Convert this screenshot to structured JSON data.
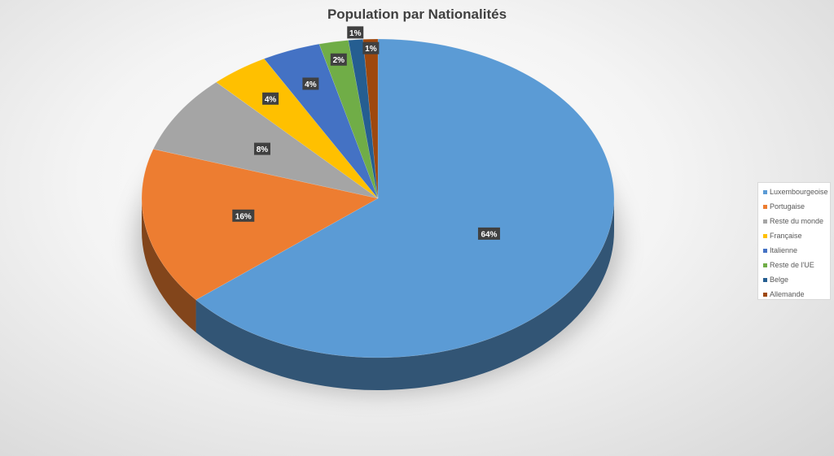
{
  "chart_data": {
    "type": "pie",
    "title": "Population par Nationalités",
    "categories": [
      "Luxembourgeoise",
      "Portugaise",
      "Reste du monde",
      "Française",
      "Italienne",
      "Reste de l'UE",
      "Belge",
      "Allemande"
    ],
    "values": [
      64,
      16,
      8,
      4,
      4,
      2,
      1,
      1
    ],
    "data_labels": [
      "64%",
      "16%",
      "8%",
      "4%",
      "4%",
      "2%",
      "1%",
      "1%"
    ],
    "colors": [
      "#5b9bd5",
      "#ed7d31",
      "#a5a5a5",
      "#ffc000",
      "#4472c4",
      "#70ad47",
      "#255e91",
      "#9e480e"
    ],
    "legend": "right",
    "style": "3d-pie"
  }
}
